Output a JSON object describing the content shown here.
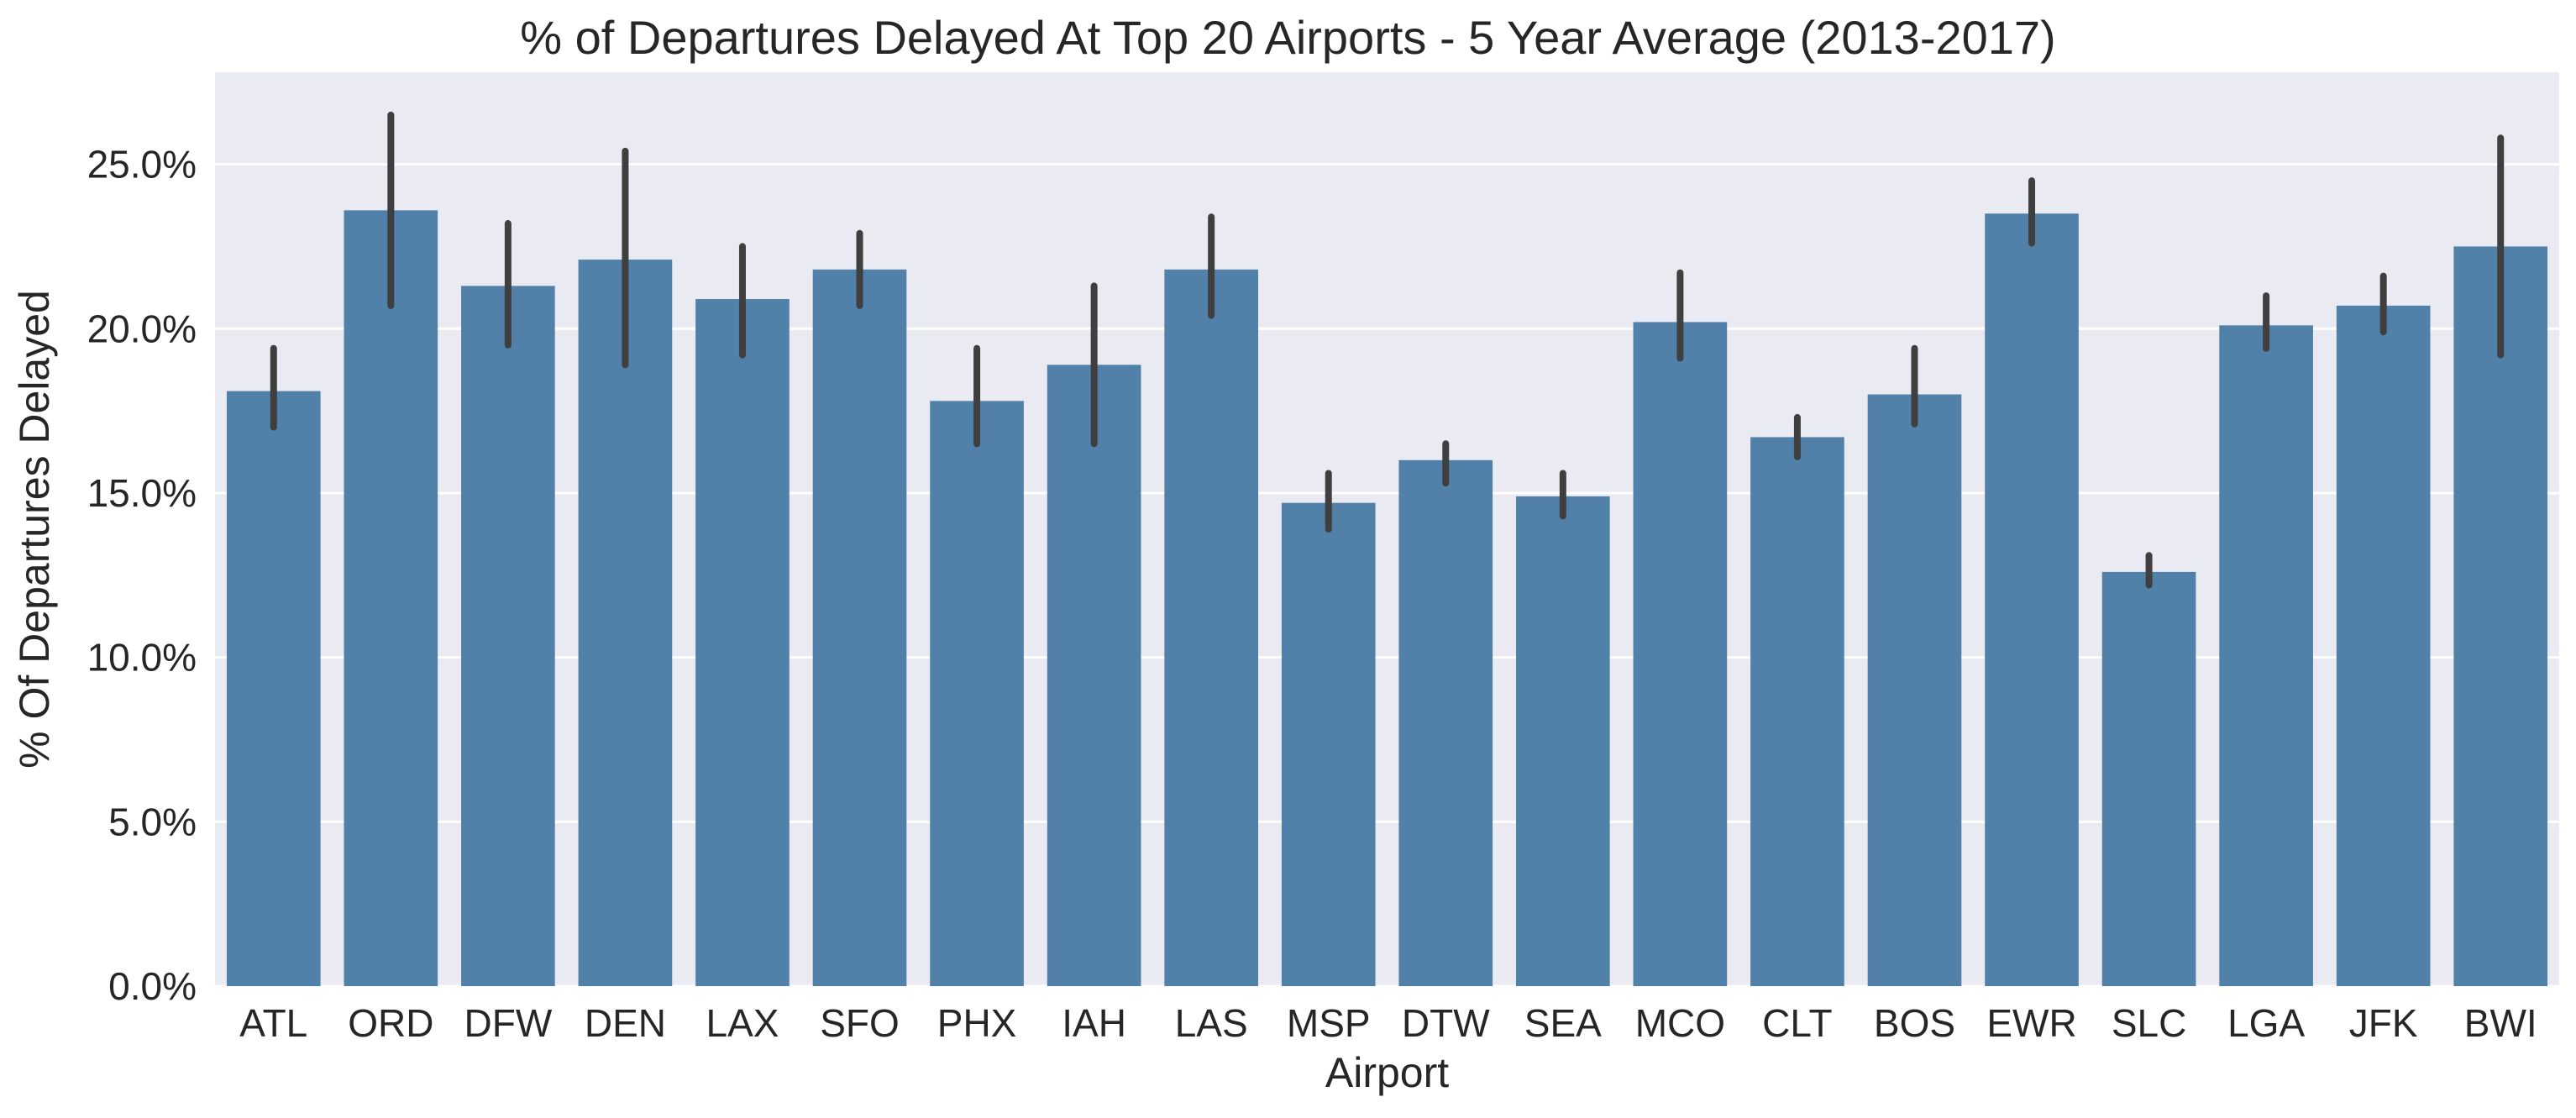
{
  "chart_data": {
    "type": "bar",
    "title": "% of Departures Delayed At Top 20 Airports - 5 Year Average (2013-2017)",
    "xlabel": "Airport",
    "ylabel": "% Of Departures Delayed",
    "ylim": [
      0,
      27.8
    ],
    "yticks": [
      0,
      5,
      10,
      15,
      20,
      25
    ],
    "ytick_labels": [
      "0.0%",
      "5.0%",
      "10.0%",
      "15.0%",
      "20.0%",
      "25.0%"
    ],
    "grid": true,
    "legend": "none",
    "bar_color": "#5180a9",
    "errorbar_color": "#3f3f3f",
    "background_color": "#eaeaf2",
    "categories": [
      "ATL",
      "ORD",
      "DFW",
      "DEN",
      "LAX",
      "SFO",
      "PHX",
      "IAH",
      "LAS",
      "MSP",
      "DTW",
      "SEA",
      "MCO",
      "CLT",
      "BOS",
      "EWR",
      "SLC",
      "LGA",
      "JFK",
      "BWI"
    ],
    "values": [
      18.1,
      23.6,
      21.3,
      22.1,
      20.9,
      21.8,
      17.8,
      18.9,
      21.8,
      14.7,
      16.0,
      14.9,
      20.2,
      16.7,
      18.0,
      23.5,
      12.6,
      20.1,
      20.7,
      22.5
    ],
    "error_low": [
      17.0,
      20.7,
      19.5,
      18.9,
      19.2,
      20.7,
      16.5,
      16.5,
      20.4,
      13.9,
      15.3,
      14.3,
      19.1,
      16.1,
      17.1,
      22.6,
      12.2,
      19.4,
      19.9,
      19.2
    ],
    "error_high": [
      19.4,
      26.5,
      23.2,
      25.4,
      22.5,
      22.9,
      19.4,
      21.3,
      23.4,
      15.6,
      16.5,
      15.6,
      21.7,
      17.3,
      19.4,
      24.5,
      13.1,
      21.0,
      21.6,
      25.8
    ]
  }
}
